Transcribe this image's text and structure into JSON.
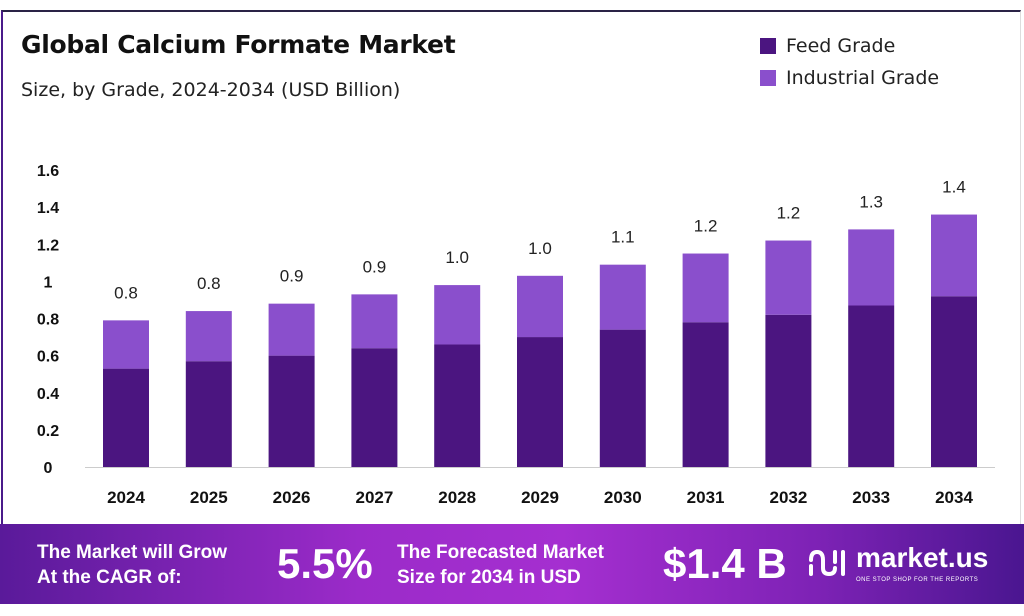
{
  "header": {
    "title": "Global Calcium Formate Market",
    "subtitle": "Size, by Grade, 2024-2034 (USD Billion)"
  },
  "chart_data": {
    "type": "bar",
    "stacked": true,
    "title": "Global Calcium Formate Market",
    "subtitle": "Size, by Grade, 2024-2034 (USD Billion)",
    "categories": [
      "2024",
      "2025",
      "2026",
      "2027",
      "2028",
      "2029",
      "2030",
      "2031",
      "2032",
      "2033",
      "2034"
    ],
    "series": [
      {
        "name": "Feed Grade",
        "color": "#4b1580",
        "values": [
          0.53,
          0.57,
          0.6,
          0.64,
          0.66,
          0.7,
          0.74,
          0.78,
          0.82,
          0.87,
          0.92
        ]
      },
      {
        "name": "Industrial Grade",
        "color": "#8a4fcc",
        "values": [
          0.26,
          0.27,
          0.28,
          0.29,
          0.32,
          0.33,
          0.35,
          0.37,
          0.4,
          0.41,
          0.44
        ]
      }
    ],
    "totals_labels": [
      "0.8",
      "0.8",
      "0.9",
      "0.9",
      "1.0",
      "1.0",
      "1.1",
      "1.2",
      "1.2",
      "1.3",
      "1.4"
    ],
    "yticks": [
      "0",
      "0.2",
      "0.4",
      "0.6",
      "0.8",
      "1",
      "1.2",
      "1.4",
      "1.6"
    ],
    "ylim": [
      0,
      1.6
    ],
    "grid": false,
    "legend_position": "top-right",
    "xlabel": "",
    "ylabel": ""
  },
  "banner": {
    "cagr_text_1": "The Market will Grow",
    "cagr_text_2": "At the CAGR of:",
    "cagr_value": "5.5%",
    "forecast_text_1": "The Forecasted Market",
    "forecast_text_2": "Size for 2034 in USD",
    "forecast_value": "$1.4 B",
    "logo_name": "market.us",
    "logo_tagline": "ONE STOP SHOP FOR THE REPORTS"
  }
}
